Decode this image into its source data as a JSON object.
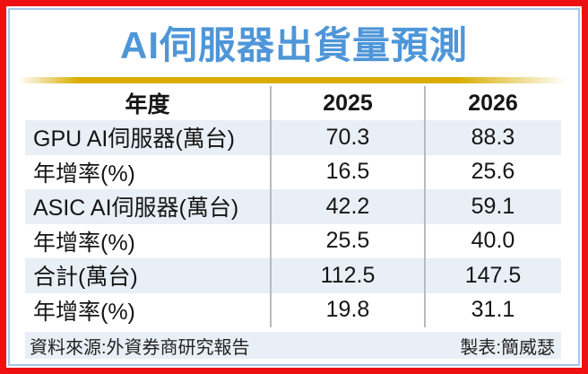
{
  "title": "AI伺服器出貨量預測",
  "colors": {
    "frame_red": "#ee1111",
    "inner_blue": "#a6c6e8",
    "title_blue": "#4e96d8",
    "gold_bar": "#d9ad00",
    "row_shade": "#e9eff6",
    "separator_gray": "#b6bbc0"
  },
  "table": {
    "header": [
      "年度",
      "2025",
      "2026"
    ],
    "rows": [
      {
        "label": "GPU AI伺服器(萬台)",
        "v2025": "70.3",
        "v2026": "88.3",
        "shaded": true
      },
      {
        "label": "年增率(%)",
        "v2025": "16.5",
        "v2026": "25.6",
        "shaded": false
      },
      {
        "label": "ASIC AI伺服器(萬台)",
        "v2025": "42.2",
        "v2026": "59.1",
        "shaded": true
      },
      {
        "label": "年增率(%)",
        "v2025": "25.5",
        "v2026": "40.0",
        "shaded": false
      },
      {
        "label": "合計(萬台)",
        "v2025": "112.5",
        "v2026": "147.5",
        "shaded": true
      },
      {
        "label": "年增率(%)",
        "v2025": "19.8",
        "v2026": "31.1",
        "shaded": false
      }
    ]
  },
  "footer": {
    "source": "資料來源:外資券商研究報告",
    "credit": "製表:簡威瑟"
  },
  "chart_data": {
    "type": "table",
    "title": "AI伺服器出貨量預測",
    "columns": [
      "年度",
      "2025",
      "2026"
    ],
    "rows": [
      [
        "GPU AI伺服器(萬台)",
        70.3,
        88.3
      ],
      [
        "年增率(%)",
        16.5,
        25.6
      ],
      [
        "ASIC AI伺服器(萬台)",
        42.2,
        59.1
      ],
      [
        "年增率(%)",
        25.5,
        40.0
      ],
      [
        "合計(萬台)",
        112.5,
        147.5
      ],
      [
        "年增率(%)",
        19.8,
        31.1
      ]
    ],
    "source": "外資券商研究報告",
    "credit": "簡威瑟"
  }
}
